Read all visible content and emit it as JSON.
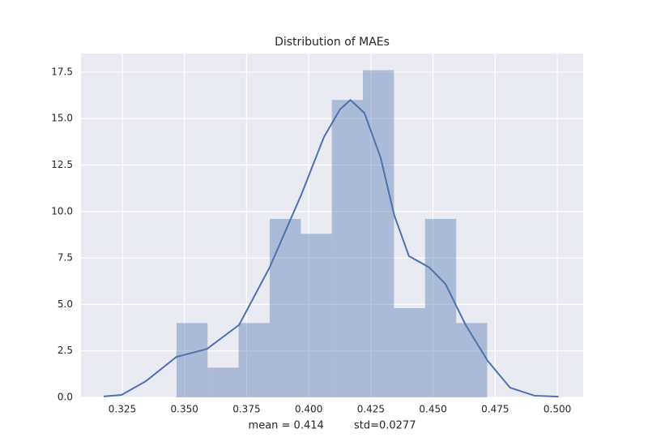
{
  "chart_data": {
    "type": "histogram",
    "title": "Distribution of MAEs",
    "xlabel": "mean = 0.414         std=0.0277",
    "bins": [
      0.3468,
      0.3593,
      0.3718,
      0.3843,
      0.3968,
      0.4093,
      0.4218,
      0.4343,
      0.4468,
      0.4593,
      0.4718
    ],
    "values": [
      4.0,
      1.6,
      4.0,
      9.6,
      8.8,
      16.0,
      17.6,
      4.8,
      9.6,
      4.0
    ],
    "color": "#4c72b0",
    "kde": {
      "color": "#4c72b0",
      "x": [
        0.3175,
        0.3247,
        0.3345,
        0.3468,
        0.359,
        0.372,
        0.3843,
        0.397,
        0.4061,
        0.4126,
        0.4168,
        0.4224,
        0.4289,
        0.4344,
        0.4403,
        0.4484,
        0.455,
        0.4631,
        0.472,
        0.481,
        0.4908,
        0.5005
      ],
      "y": [
        0.05,
        0.13,
        0.87,
        2.18,
        2.6,
        3.9,
        7.0,
        10.9,
        14.0,
        15.5,
        16.0,
        15.3,
        12.9,
        9.8,
        7.6,
        7.0,
        6.1,
        3.9,
        1.96,
        0.52,
        0.09,
        0.04
      ]
    },
    "xlim": [
      0.3084,
      0.5104
    ],
    "ylim": [
      0,
      18.5
    ],
    "xticks": [
      0.325,
      {
        "value": 0.35,
        "label": "0.350"
      },
      0.375,
      {
        "value": 0.4,
        "label": "0.400"
      },
      0.425,
      {
        "value": 0.45,
        "label": "0.450"
      },
      0.475,
      {
        "value": 0.5,
        "label": "0.500"
      }
    ],
    "yticks": [
      {
        "value": 0,
        "label": "0.0"
      },
      2.5,
      {
        "value": 5,
        "label": "5.0"
      },
      7.5,
      {
        "value": 10,
        "label": "10.0"
      },
      12.5,
      {
        "value": 15,
        "label": "15.0"
      },
      17.5
    ],
    "grid": true
  }
}
